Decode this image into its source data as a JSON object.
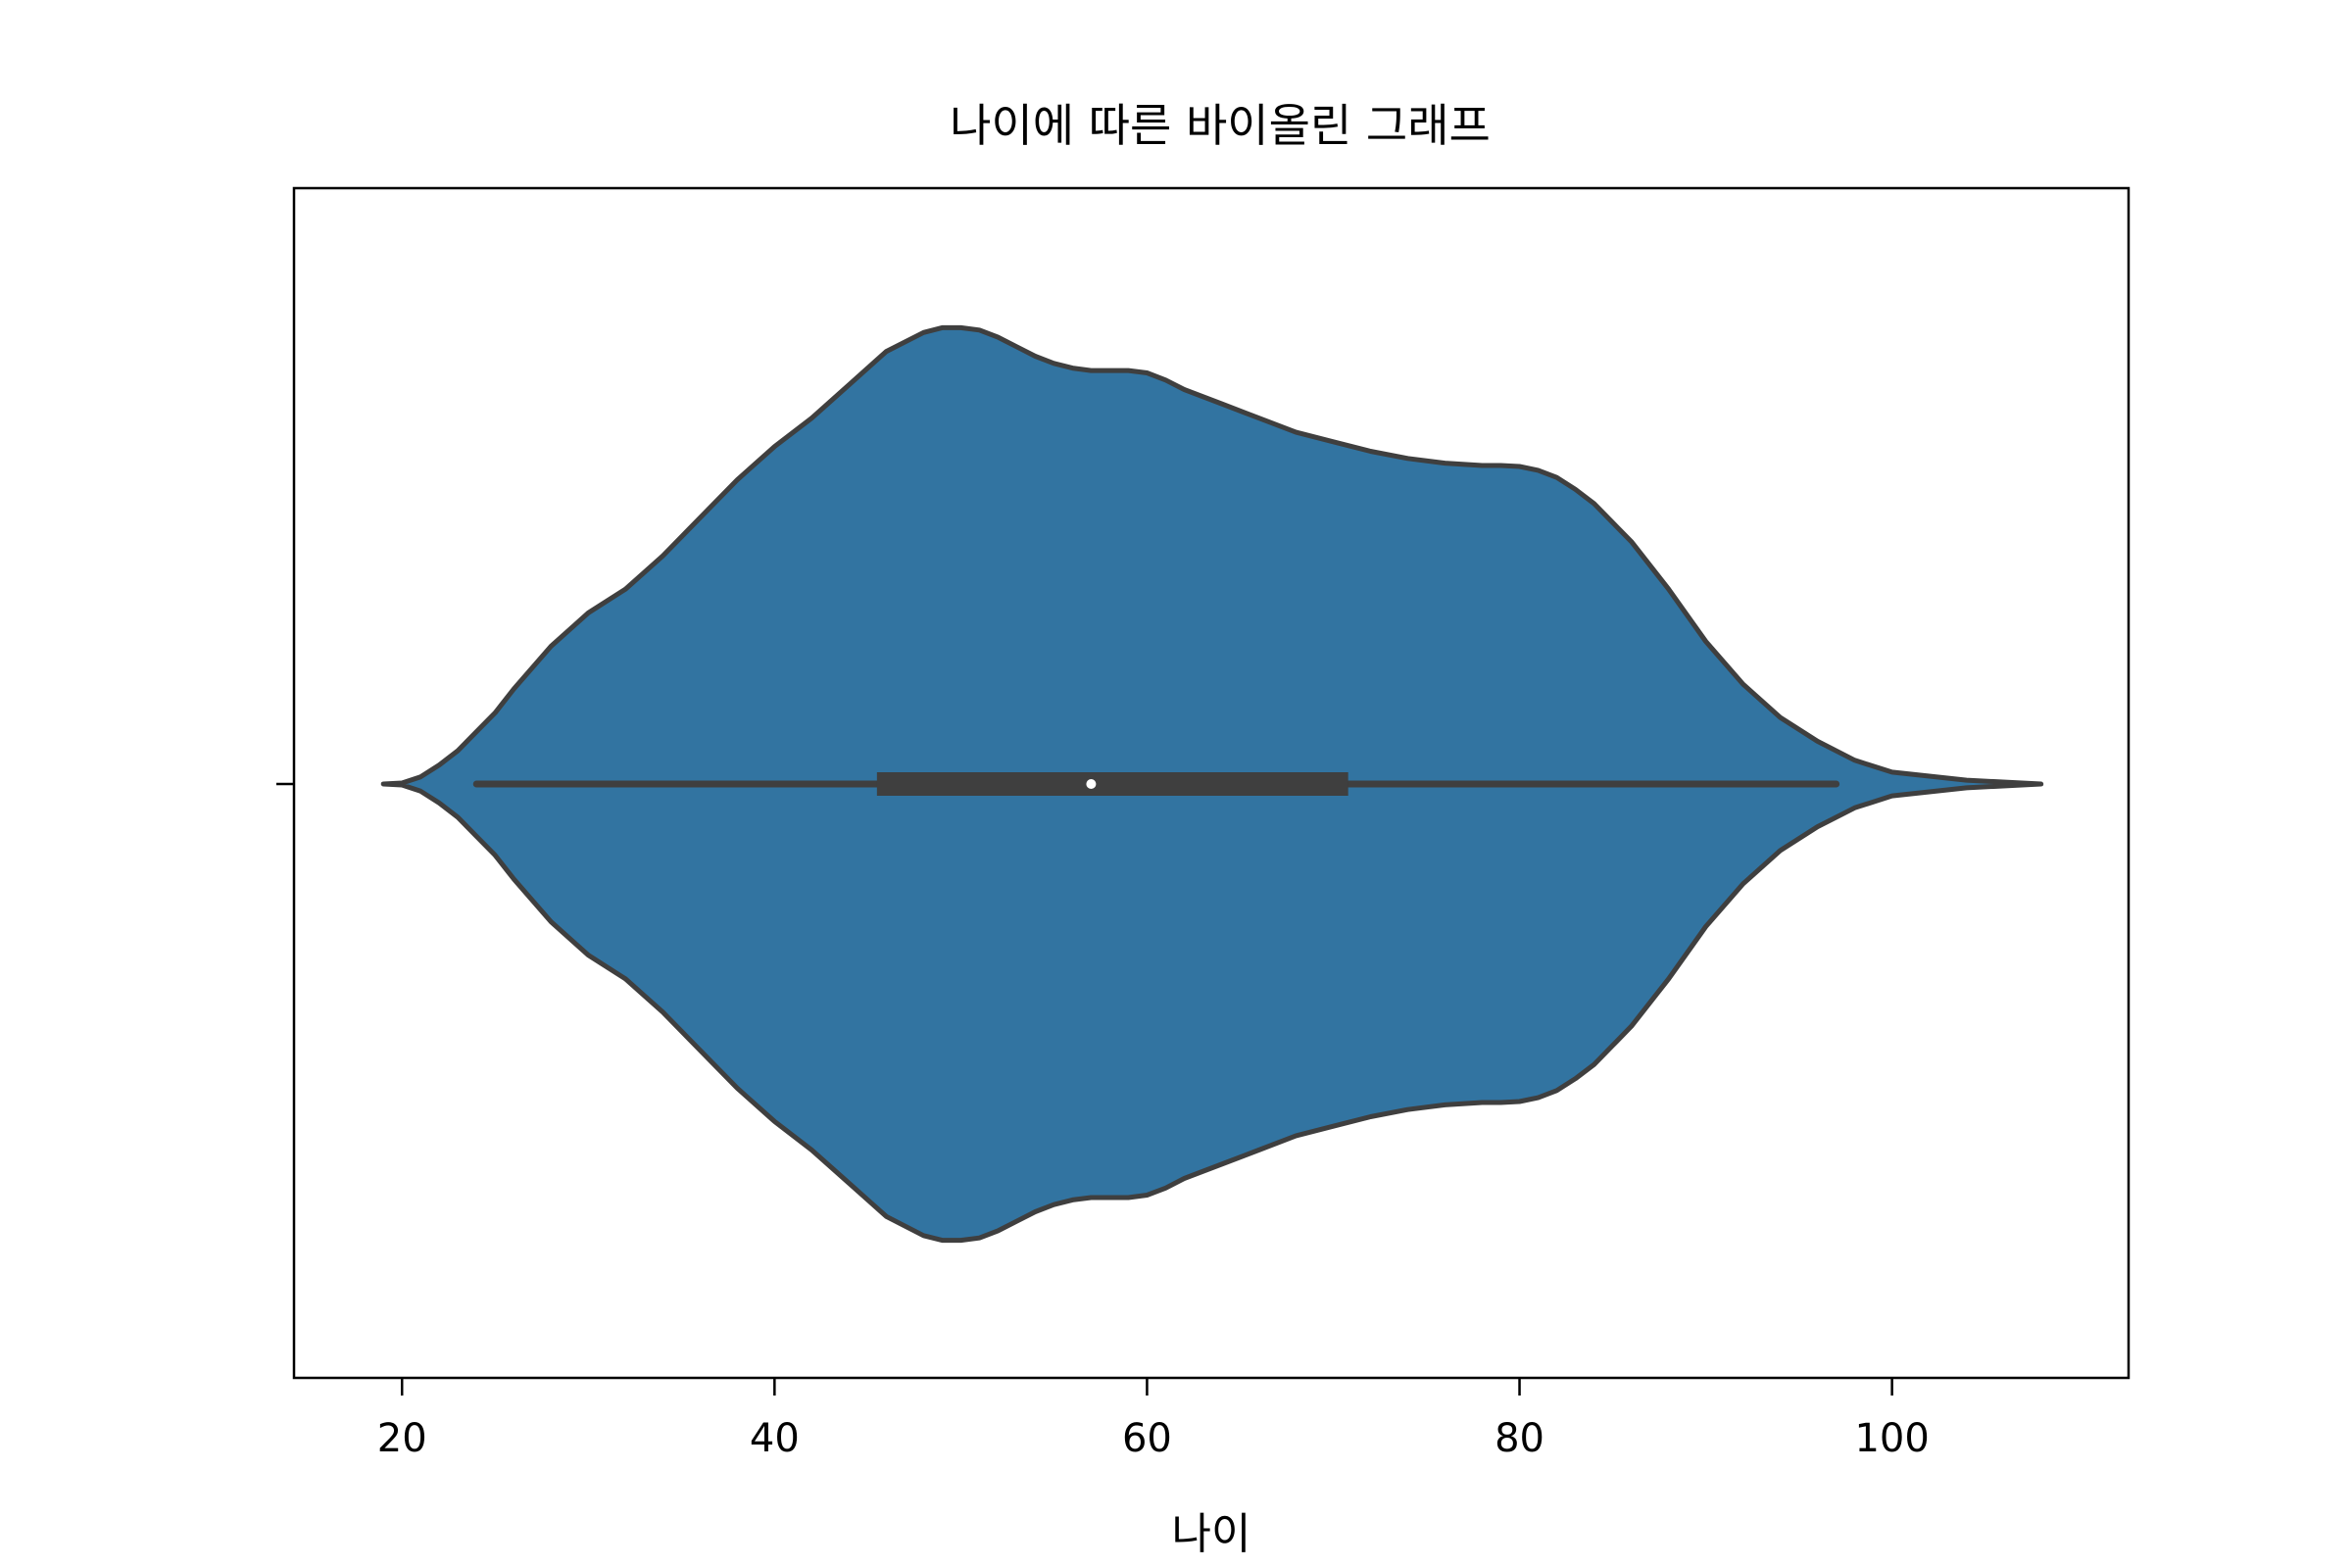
{
  "chart_data": {
    "type": "violin",
    "title": "나이에 따른 바이올린 그래프",
    "xlabel": "나이",
    "ylabel": "",
    "xlim": [
      14.2,
      112.7
    ],
    "xticks": [
      20,
      40,
      60,
      80,
      100
    ],
    "xtick_labels": [
      "20",
      "40",
      "60",
      "80",
      "100"
    ],
    "grid": false,
    "colors": {
      "body": "#3274a1",
      "outline": "#3f3f3f",
      "box": "#3f3f3f",
      "median": "#ffffff"
    },
    "box": {
      "whisker_low": 24,
      "q1": 45.5,
      "median": 57,
      "q3": 70.8,
      "whisker_high": 97
    },
    "density_curve": {
      "x": [
        19,
        20,
        21,
        22,
        23,
        24,
        25,
        26,
        28,
        30,
        32,
        34,
        36,
        38,
        40,
        42,
        44,
        46,
        48,
        49,
        50,
        51,
        52,
        53,
        54,
        55,
        56,
        57,
        58,
        59,
        60,
        61,
        62,
        64,
        66,
        68,
        70,
        72,
        74,
        76,
        78,
        79,
        80,
        81,
        82,
        83,
        84,
        85,
        86,
        88,
        90,
        92,
        94,
        96,
        98,
        100,
        104,
        108
      ],
      "half_width": [
        0.0,
        0.002,
        0.015,
        0.04,
        0.07,
        0.11,
        0.15,
        0.2,
        0.29,
        0.36,
        0.41,
        0.48,
        0.56,
        0.64,
        0.71,
        0.77,
        0.84,
        0.91,
        0.95,
        0.96,
        0.96,
        0.955,
        0.94,
        0.92,
        0.9,
        0.885,
        0.875,
        0.87,
        0.87,
        0.87,
        0.865,
        0.85,
        0.83,
        0.8,
        0.77,
        0.74,
        0.72,
        0.7,
        0.685,
        0.675,
        0.67,
        0.67,
        0.668,
        0.66,
        0.645,
        0.62,
        0.59,
        0.55,
        0.51,
        0.41,
        0.3,
        0.21,
        0.14,
        0.09,
        0.05,
        0.025,
        0.008,
        0.0
      ]
    }
  }
}
